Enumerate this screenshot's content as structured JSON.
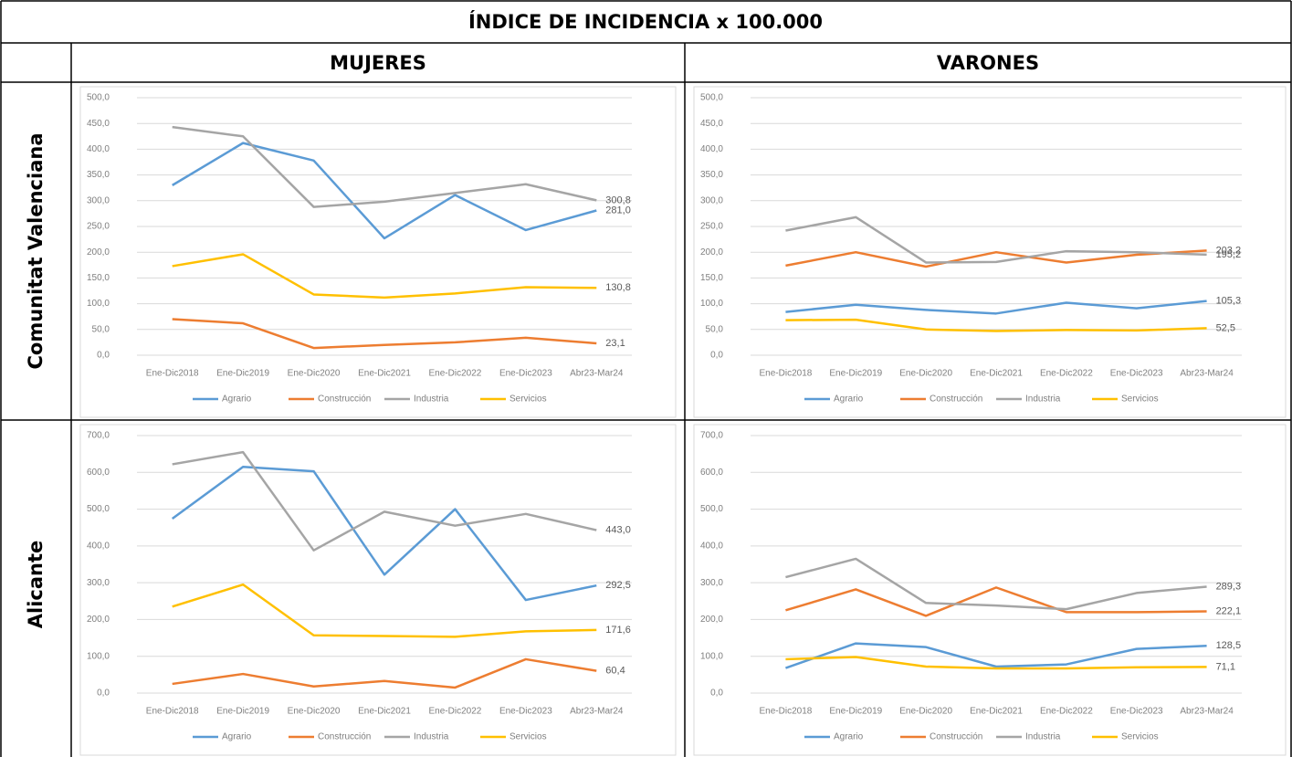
{
  "title": "ÍNDICE DE INCIDENCIA x 100.000",
  "columns": [
    "MUJERES",
    "VARONES"
  ],
  "rows": [
    "Comunitat Valenciana",
    "Alicante"
  ],
  "chart_data": [
    {
      "type": "line",
      "categories": [
        "Ene-Dic2018",
        "Ene-Dic2019",
        "Ene-Dic2020",
        "Ene-Dic2021",
        "Ene-Dic2022",
        "Ene-Dic2023",
        "Abr23-Mar24"
      ],
      "ylim": [
        0,
        500
      ],
      "yticks": [
        {
          "value": 0,
          "label": "0,0"
        },
        {
          "value": 50,
          "label": "50,0"
        },
        {
          "value": 100,
          "label": "100,0"
        },
        {
          "value": 150,
          "label": "150,0"
        },
        {
          "value": 200,
          "label": "200,0"
        },
        {
          "value": 250,
          "label": "250,0"
        },
        {
          "value": 300,
          "label": "300,0"
        },
        {
          "value": 350,
          "label": "350,0"
        },
        {
          "value": 400,
          "label": "400,0"
        },
        {
          "value": 450,
          "label": "450,0"
        },
        {
          "value": 500,
          "label": "500,0"
        }
      ],
      "grid": true,
      "legend": "bottom",
      "series": [
        {
          "name": "Agrario",
          "color": "#5b9bd5",
          "values": [
            330,
            412,
            378,
            227,
            311,
            243,
            281.0
          ],
          "value_labels": [
            null,
            null,
            null,
            null,
            null,
            null,
            "281,0"
          ]
        },
        {
          "name": "Construcción",
          "color": "#ed7d31",
          "values": [
            70,
            62,
            14,
            20,
            25,
            34,
            23.1
          ],
          "value_labels": [
            null,
            null,
            null,
            null,
            null,
            null,
            "23,1"
          ]
        },
        {
          "name": "Industria",
          "color": "#a5a5a5",
          "values": [
            443,
            425,
            288,
            298,
            315,
            332,
            300.8
          ],
          "value_labels": [
            null,
            null,
            null,
            null,
            null,
            null,
            "300,8"
          ]
        },
        {
          "name": "Servicios",
          "color": "#ffc000",
          "values": [
            173,
            196,
            118,
            112,
            120,
            132,
            130.8
          ],
          "value_labels": [
            null,
            null,
            null,
            null,
            null,
            null,
            "130,8"
          ]
        }
      ]
    },
    {
      "type": "line",
      "categories": [
        "Ene-Dic2018",
        "Ene-Dic2019",
        "Ene-Dic2020",
        "Ene-Dic2021",
        "Ene-Dic2022",
        "Ene-Dic2023",
        "Abr23-Mar24"
      ],
      "ylim": [
        0,
        500
      ],
      "yticks": [
        {
          "value": 0,
          "label": "0,0"
        },
        {
          "value": 50,
          "label": "50,0"
        },
        {
          "value": 100,
          "label": "100,0"
        },
        {
          "value": 150,
          "label": "150,0"
        },
        {
          "value": 200,
          "label": "200,0"
        },
        {
          "value": 250,
          "label": "250,0"
        },
        {
          "value": 300,
          "label": "300,0"
        },
        {
          "value": 350,
          "label": "350,0"
        },
        {
          "value": 400,
          "label": "400,0"
        },
        {
          "value": 450,
          "label": "450,0"
        },
        {
          "value": 500,
          "label": "500,0"
        }
      ],
      "grid": true,
      "legend": "bottom",
      "series": [
        {
          "name": "Agrario",
          "color": "#5b9bd5",
          "values": [
            84,
            98,
            88,
            81,
            102,
            91,
            105.3
          ],
          "value_labels": [
            null,
            null,
            null,
            null,
            null,
            null,
            "105,3"
          ]
        },
        {
          "name": "Construcción",
          "color": "#ed7d31",
          "values": [
            174,
            200,
            172,
            200,
            180,
            195,
            203.2
          ],
          "value_labels": [
            null,
            null,
            null,
            null,
            null,
            null,
            "203,2"
          ]
        },
        {
          "name": "Industria",
          "color": "#a5a5a5",
          "values": [
            242,
            268,
            180,
            181,
            202,
            200,
            195.2
          ],
          "value_labels": [
            null,
            null,
            null,
            null,
            null,
            null,
            "195,2"
          ]
        },
        {
          "name": "Servicios",
          "color": "#ffc000",
          "values": [
            68,
            69,
            50,
            47,
            49,
            48,
            52.5
          ],
          "value_labels": [
            null,
            null,
            null,
            null,
            null,
            null,
            "52,5"
          ]
        }
      ]
    },
    {
      "type": "line",
      "categories": [
        "Ene-Dic2018",
        "Ene-Dic2019",
        "Ene-Dic2020",
        "Ene-Dic2021",
        "Ene-Dic2022",
        "Ene-Dic2023",
        "Abr23-Mar24"
      ],
      "ylim": [
        0,
        700
      ],
      "yticks": [
        {
          "value": 0,
          "label": "0,0"
        },
        {
          "value": 100,
          "label": "100,0"
        },
        {
          "value": 200,
          "label": "200,0"
        },
        {
          "value": 300,
          "label": "300,0"
        },
        {
          "value": 400,
          "label": "400,0"
        },
        {
          "value": 500,
          "label": "500,0"
        },
        {
          "value": 600,
          "label": "600,0"
        },
        {
          "value": 700,
          "label": "700,0"
        }
      ],
      "grid": true,
      "legend": "bottom",
      "series": [
        {
          "name": "Agrario",
          "color": "#5b9bd5",
          "values": [
            474,
            615,
            603,
            322,
            500,
            253,
            292.5
          ],
          "value_labels": [
            null,
            null,
            null,
            null,
            null,
            null,
            "292,5"
          ]
        },
        {
          "name": "Construcción",
          "color": "#ed7d31",
          "values": [
            25,
            52,
            18,
            33,
            15,
            92,
            60.4
          ],
          "value_labels": [
            null,
            null,
            null,
            null,
            null,
            null,
            "60,4"
          ]
        },
        {
          "name": "Industria",
          "color": "#a5a5a5",
          "values": [
            622,
            655,
            388,
            493,
            455,
            487,
            443.0
          ],
          "value_labels": [
            null,
            null,
            null,
            null,
            null,
            null,
            "443,0"
          ]
        },
        {
          "name": "Servicios",
          "color": "#ffc000",
          "values": [
            235,
            295,
            157,
            155,
            153,
            168,
            171.6
          ],
          "value_labels": [
            null,
            null,
            null,
            null,
            null,
            null,
            "171,6"
          ]
        }
      ]
    },
    {
      "type": "line",
      "categories": [
        "Ene-Dic2018",
        "Ene-Dic2019",
        "Ene-Dic2020",
        "Ene-Dic2021",
        "Ene-Dic2022",
        "Ene-Dic2023",
        "Abr23-Mar24"
      ],
      "ylim": [
        0,
        700
      ],
      "yticks": [
        {
          "value": 0,
          "label": "0,0"
        },
        {
          "value": 100,
          "label": "100,0"
        },
        {
          "value": 200,
          "label": "200,0"
        },
        {
          "value": 300,
          "label": "300,0"
        },
        {
          "value": 400,
          "label": "400,0"
        },
        {
          "value": 500,
          "label": "500,0"
        },
        {
          "value": 600,
          "label": "600,0"
        },
        {
          "value": 700,
          "label": "700,0"
        }
      ],
      "grid": true,
      "legend": "bottom",
      "series": [
        {
          "name": "Agrario",
          "color": "#5b9bd5",
          "values": [
            68,
            135,
            125,
            72,
            78,
            120,
            128.5
          ],
          "value_labels": [
            null,
            null,
            null,
            null,
            null,
            null,
            "128,5"
          ]
        },
        {
          "name": "Construcción",
          "color": "#ed7d31",
          "values": [
            225,
            282,
            210,
            287,
            220,
            220,
            222.1
          ],
          "value_labels": [
            null,
            null,
            null,
            null,
            null,
            null,
            "222,1"
          ]
        },
        {
          "name": "Industria",
          "color": "#a5a5a5",
          "values": [
            315,
            365,
            245,
            238,
            228,
            272,
            289.3
          ],
          "value_labels": [
            null,
            null,
            null,
            null,
            null,
            null,
            "289,3"
          ]
        },
        {
          "name": "Servicios",
          "color": "#ffc000",
          "values": [
            92,
            98,
            72,
            67,
            67,
            70,
            71.1
          ],
          "value_labels": [
            null,
            null,
            null,
            null,
            null,
            null,
            "71,1"
          ]
        }
      ]
    }
  ]
}
